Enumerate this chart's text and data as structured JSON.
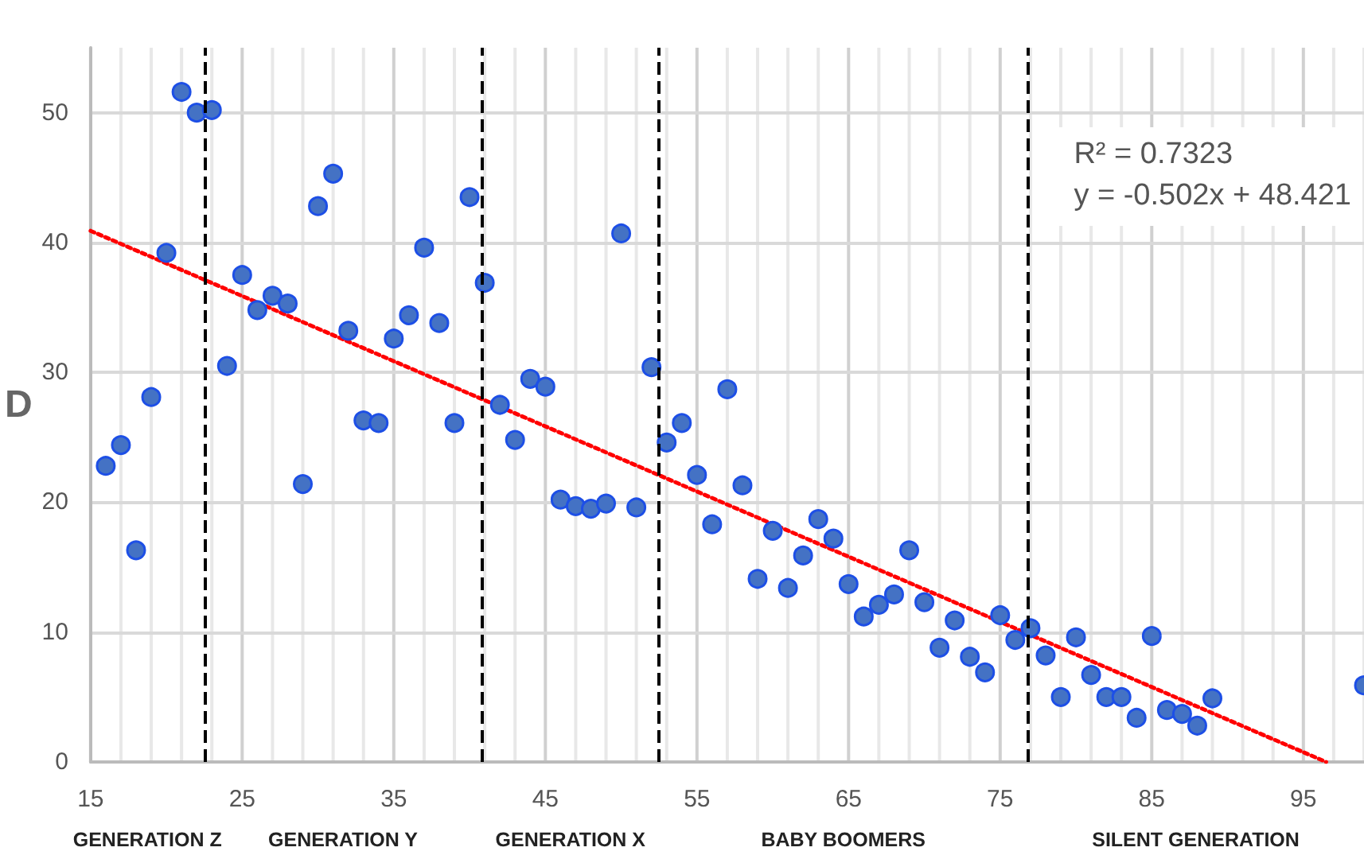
{
  "chart_data": {
    "type": "scatter",
    "ylabel": "D",
    "xlim": [
      15,
      99
    ],
    "xticks": [
      15,
      25,
      35,
      45,
      55,
      65,
      75,
      85,
      95
    ],
    "ylim": [
      0,
      55
    ],
    "yticks": [
      0,
      10,
      20,
      30,
      40,
      50
    ],
    "grid": true,
    "marker": "circle",
    "series": [
      {
        "color": "#4472c4",
        "x": [
          16,
          17,
          18,
          19,
          20,
          21,
          22,
          23,
          24,
          25,
          26,
          27,
          28,
          29,
          30,
          31,
          32,
          33,
          34,
          35,
          36,
          37,
          38,
          39,
          40,
          41,
          42,
          43,
          44,
          45,
          46,
          47,
          48,
          49,
          50,
          51,
          52,
          53,
          54,
          55,
          56,
          57,
          58,
          59,
          60,
          61,
          62,
          63,
          64,
          65,
          66,
          67,
          68,
          69,
          70,
          71,
          72,
          73,
          74,
          75,
          76,
          77,
          78,
          79,
          80,
          81,
          82,
          83,
          84,
          85,
          86,
          87,
          88,
          89,
          99
        ],
        "values": [
          22.8,
          24.4,
          16.3,
          28.1,
          39.2,
          51.6,
          50.0,
          50.2,
          30.5,
          37.5,
          34.8,
          35.9,
          35.3,
          21.4,
          42.8,
          45.3,
          33.2,
          26.3,
          26.1,
          32.6,
          34.4,
          39.6,
          33.8,
          26.1,
          43.5,
          36.9,
          27.5,
          24.8,
          29.5,
          28.9,
          20.2,
          19.7,
          19.5,
          19.9,
          40.7,
          19.6,
          30.4,
          24.6,
          26.1,
          22.1,
          18.3,
          28.7,
          21.3,
          14.1,
          17.8,
          13.4,
          15.9,
          18.7,
          17.2,
          13.7,
          11.2,
          12.1,
          12.9,
          16.3,
          12.3,
          8.8,
          10.9,
          8.1,
          6.9,
          11.3,
          9.4,
          10.3,
          8.2,
          5.0,
          9.6,
          6.7,
          5.0,
          5.0,
          3.4,
          9.7,
          4.0,
          3.7,
          2.8,
          4.9,
          5.9
        ]
      },
      {
        "type": "line",
        "color": "#ff0000",
        "line_style": "dotted",
        "marker": "none",
        "x": [
          15,
          96.5
        ],
        "values": [
          40.9,
          0
        ]
      }
    ],
    "ref_lines": [
      {
        "axis": "x",
        "value": 22.5,
        "color": "#000000",
        "line_style": "dashed"
      },
      {
        "axis": "x",
        "value": 40.8,
        "color": "#000000",
        "line_style": "dashed"
      },
      {
        "axis": "x",
        "value": 52.5,
        "color": "#000000",
        "line_style": "dashed"
      },
      {
        "axis": "x",
        "value": 76.8,
        "color": "#000000",
        "line_style": "dashed"
      }
    ],
    "annotations": [
      "R² = 0.7323\ny = -0.502x + 48.421",
      "GENERATION Z",
      "GENERATION Y",
      "GENERATION X",
      "BABY BOOMERS",
      "SILENT GENERATION"
    ]
  }
}
